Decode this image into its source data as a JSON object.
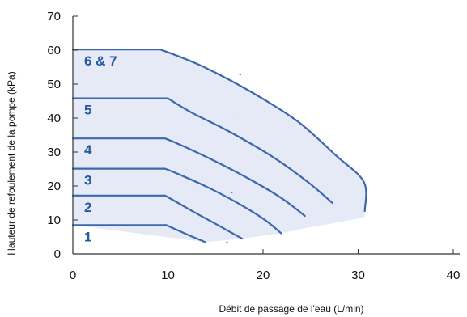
{
  "chart_data": {
    "type": "line",
    "xlabel": "Débit de passage de l'eau (L/min)",
    "ylabel": "Hauteur de refoulement de la pompe (kPa)",
    "xlim": [
      0,
      40
    ],
    "ylim": [
      0,
      70
    ],
    "x_ticks": [
      0,
      10,
      20,
      30,
      40
    ],
    "y_ticks": [
      0,
      10,
      20,
      30,
      40,
      50,
      60,
      70
    ],
    "grid": false,
    "legend": "none",
    "colors": {
      "curve": "#3b67ad",
      "label": "#245a9e",
      "fill": "#e6eaf6",
      "axis": "#333333"
    },
    "series": [
      {
        "label": "1",
        "points": [
          [
            0,
            8.5
          ],
          [
            9.8,
            8.5
          ],
          [
            10.6,
            7.5
          ],
          [
            12.2,
            5.5
          ],
          [
            13.9,
            3.5
          ]
        ]
      },
      {
        "label": "2",
        "points": [
          [
            0,
            17.2
          ],
          [
            9.7,
            17.2
          ],
          [
            10.7,
            15.6
          ],
          [
            12.7,
            12.4
          ],
          [
            15.3,
            8.4
          ],
          [
            17.8,
            4.5
          ]
        ]
      },
      {
        "label": "3",
        "points": [
          [
            0,
            25.1
          ],
          [
            9.7,
            25.1
          ],
          [
            11.1,
            23.5
          ],
          [
            13.9,
            20.0
          ],
          [
            17.2,
            15.2
          ],
          [
            20.1,
            10.2
          ],
          [
            21.9,
            6.1
          ]
        ]
      },
      {
        "label": "4",
        "points": [
          [
            0,
            34.0
          ],
          [
            9.7,
            34.0
          ],
          [
            11.4,
            32.0
          ],
          [
            14.6,
            27.8
          ],
          [
            18.2,
            22.6
          ],
          [
            21.8,
            16.7
          ],
          [
            24.4,
            11.2
          ]
        ]
      },
      {
        "label": "5",
        "points": [
          [
            0,
            45.8
          ],
          [
            10.0,
            45.8
          ],
          [
            12.5,
            41.6
          ],
          [
            16.4,
            36.1
          ],
          [
            21.0,
            28.6
          ],
          [
            24.7,
            21.2
          ],
          [
            27.3,
            15.0
          ]
        ]
      },
      {
        "label": "6 & 7",
        "points": [
          [
            0,
            60.2
          ],
          [
            9.2,
            60.2
          ],
          [
            13.5,
            55.4
          ],
          [
            18.5,
            48.1
          ],
          [
            23.6,
            39.1
          ],
          [
            27.7,
            28.9
          ],
          [
            30.6,
            21.2
          ],
          [
            30.7,
            12.6
          ]
        ]
      }
    ],
    "lower_bound": [
      [
        13.9,
        3.5
      ],
      [
        17.8,
        4.5
      ],
      [
        21.9,
        6.1
      ],
      [
        24.4,
        7.6
      ],
      [
        27.3,
        9.0
      ],
      [
        30.7,
        10.8
      ]
    ],
    "dash_marks": [
      [
        16.2,
        2.9
      ],
      [
        16.7,
        17.4
      ],
      [
        17.2,
        38.8
      ],
      [
        17.6,
        52.2
      ]
    ],
    "dash_glyph": "-"
  }
}
